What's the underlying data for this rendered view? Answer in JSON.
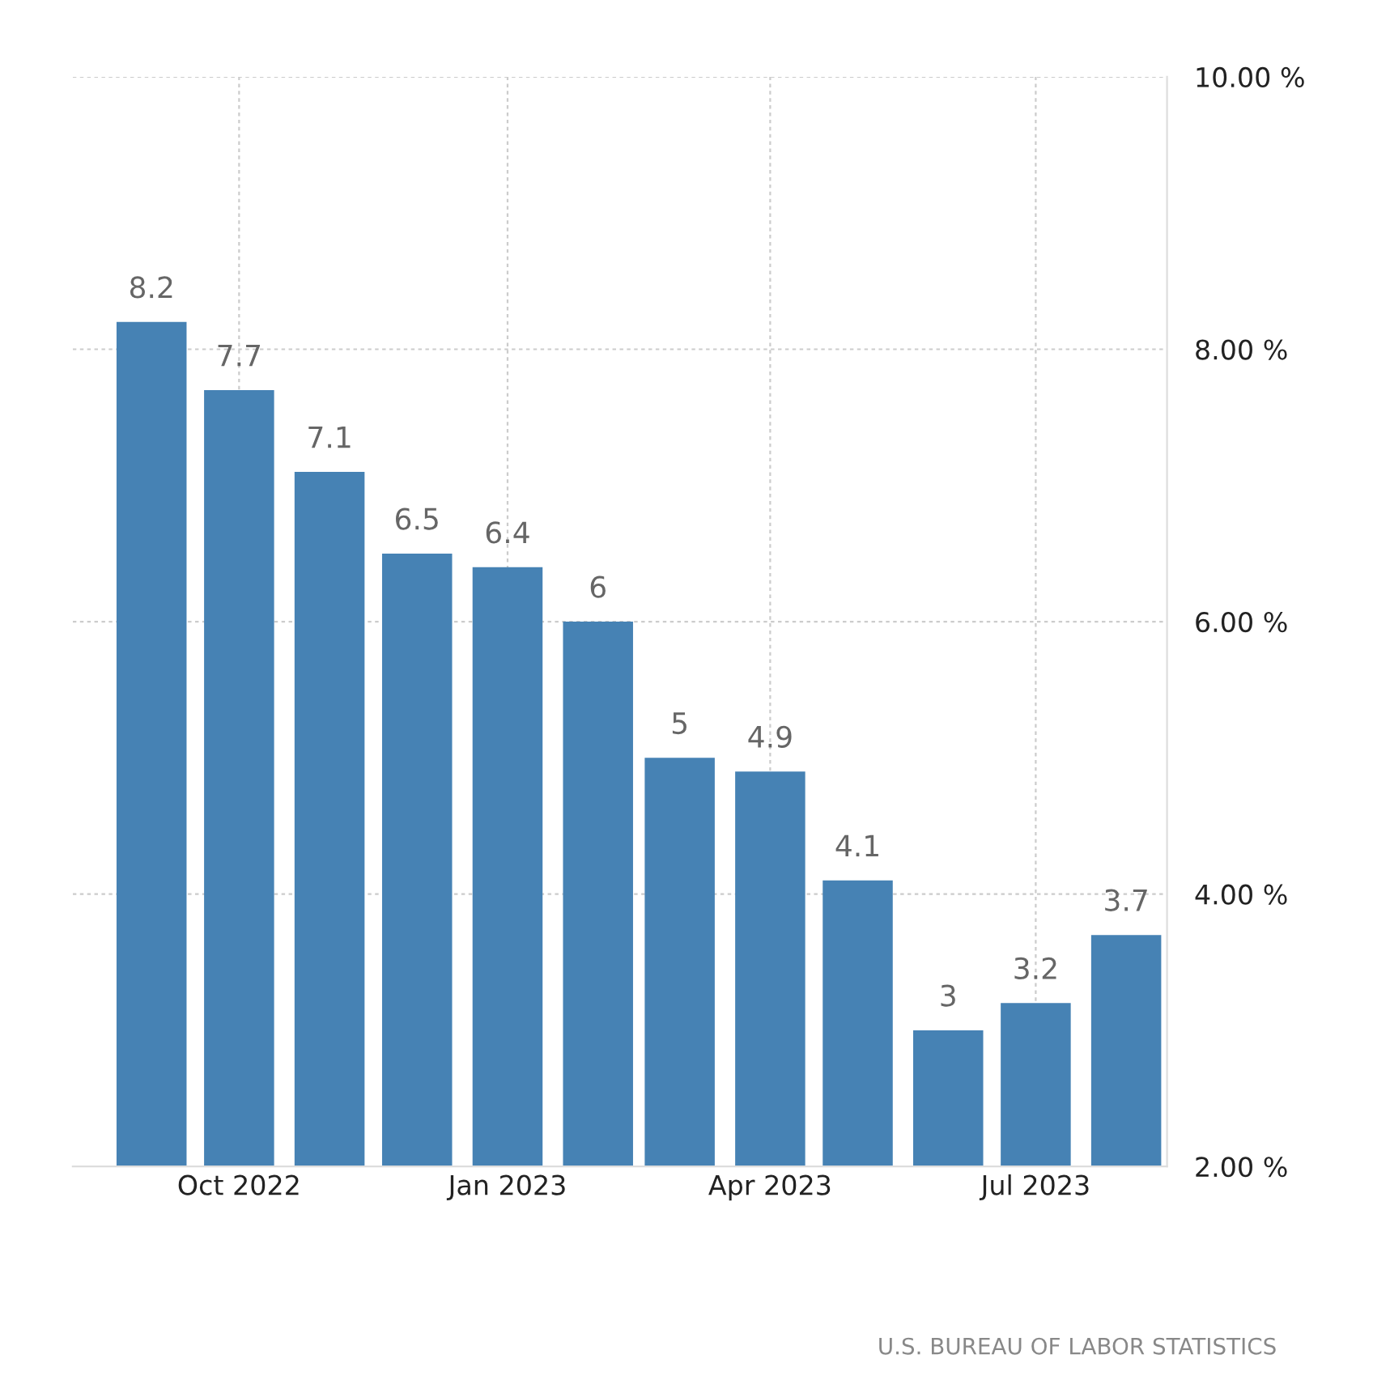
{
  "chart_data": {
    "type": "bar",
    "x": [
      "2022-09",
      "2022-10",
      "2022-11",
      "2022-12",
      "2023-01",
      "2023-02",
      "2023-03",
      "2023-04",
      "2023-05",
      "2023-06",
      "2023-07",
      "2023-08"
    ],
    "values": [
      8.2,
      7.7,
      7.1,
      6.5,
      6.4,
      6,
      5,
      4.9,
      4.1,
      3,
      3.2,
      3.7
    ],
    "color": "#4682b4",
    "data_labels": true,
    "xlim": [
      "2022-08-05",
      "2023-08-15"
    ],
    "xticks": [
      {
        "value": "2022-10",
        "label": "Oct 2022"
      },
      {
        "value": "2023-01",
        "label": "Jan 2023"
      },
      {
        "value": "2023-04",
        "label": "Apr 2023"
      },
      {
        "value": "2023-07",
        "label": "Jul 2023"
      }
    ],
    "ylim": [
      2,
      10
    ],
    "yticks": [
      {
        "value": 2,
        "label": "2.00 %"
      },
      {
        "value": 4,
        "label": "4.00 %"
      },
      {
        "value": 6,
        "label": "6.00 %"
      },
      {
        "value": 8,
        "label": "8.00 %"
      },
      {
        "value": 10,
        "label": "10.00 %"
      }
    ],
    "grid": true,
    "annotations": [
      "U.S. BUREAU OF LABOR STATISTICS"
    ]
  }
}
